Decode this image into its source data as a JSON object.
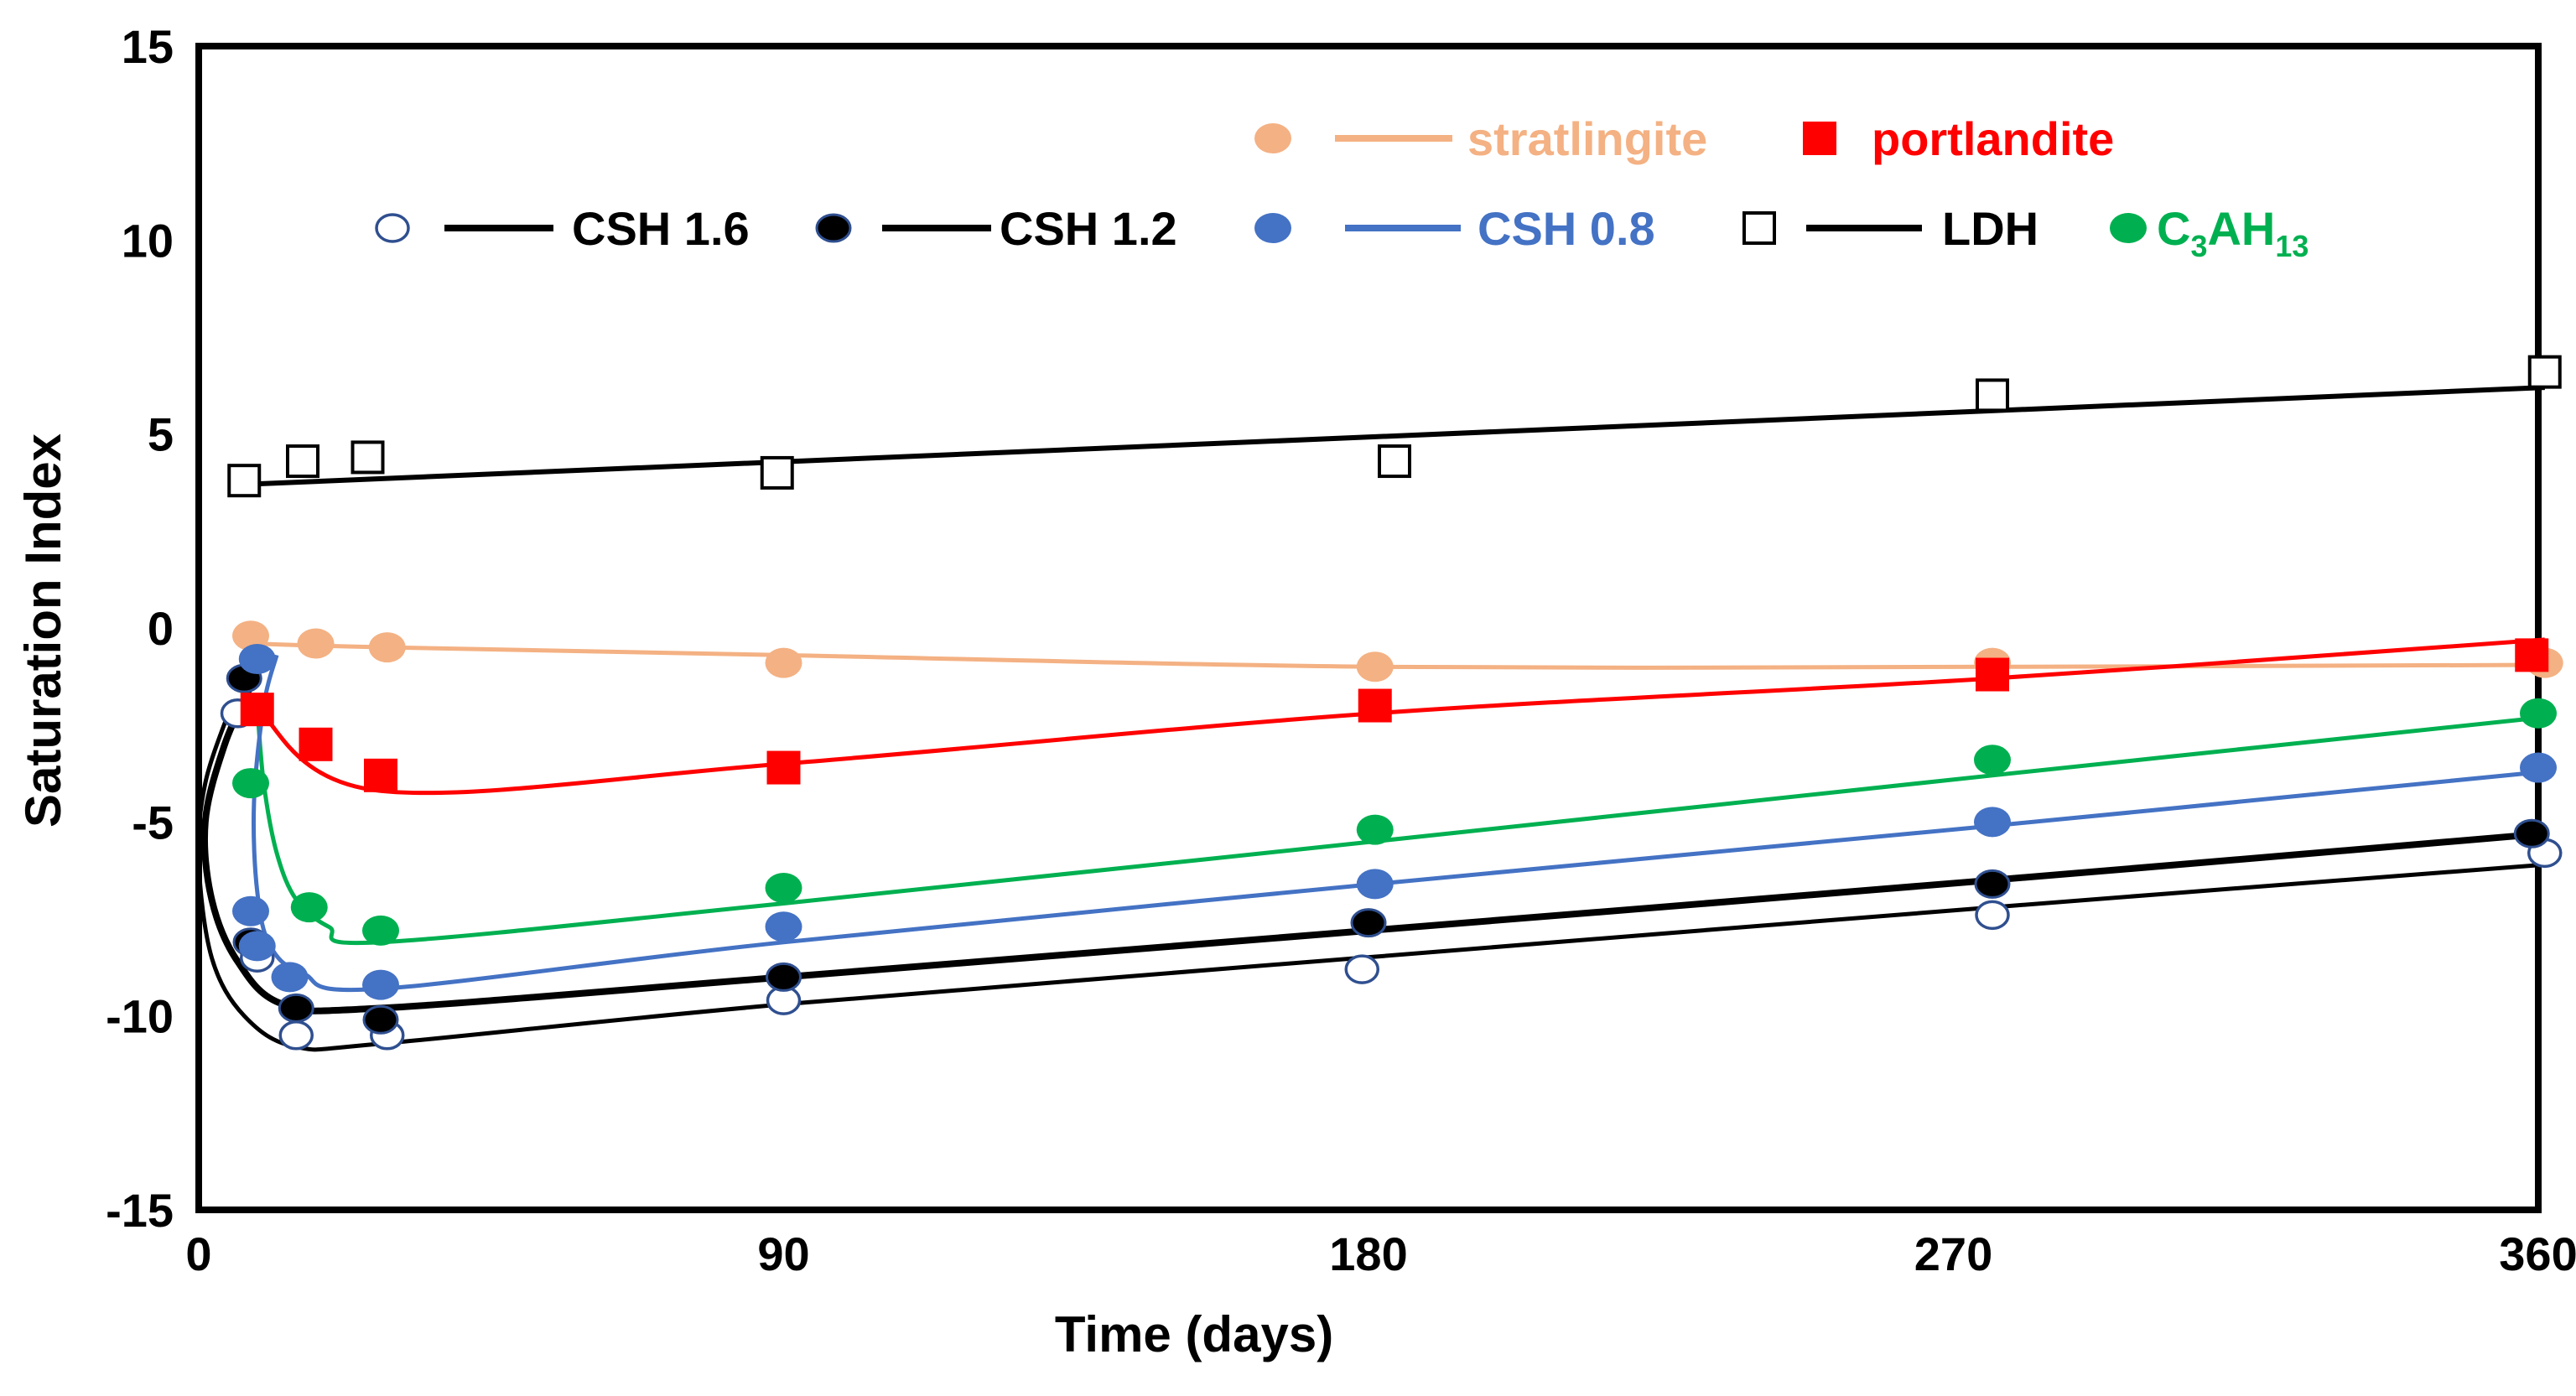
{
  "chart_data": {
    "type": "scatter",
    "title": "",
    "xlabel": "Time (days)",
    "ylabel": "Saturation Index",
    "xlim": [
      0,
      360
    ],
    "ylim": [
      -15,
      15
    ],
    "xticks": [
      0,
      90,
      180,
      270,
      360
    ],
    "yticks": [
      -15,
      -10,
      -5,
      0,
      5,
      10,
      15
    ],
    "grid": false,
    "legend_position": "top",
    "series": [
      {
        "name": "stratlingite",
        "marker": "filled-circle",
        "color": "#F4B183",
        "points": [
          [
            8,
            -0.2
          ],
          [
            18,
            -0.4
          ],
          [
            29,
            -0.5
          ],
          [
            90,
            -0.9
          ],
          [
            181,
            -1.0
          ],
          [
            276,
            -0.9
          ],
          [
            361,
            -0.9
          ]
        ],
        "fit": [
          [
            8,
            -0.4
          ],
          [
            29,
            -0.5
          ],
          [
            90,
            -0.7
          ],
          [
            181,
            -1.0
          ],
          [
            276,
            -1.0
          ],
          [
            361,
            -0.95
          ]
        ]
      },
      {
        "name": "portlandite",
        "marker": "filled-square",
        "color": "#FF0000",
        "points": [
          [
            9,
            -2.1
          ],
          [
            18,
            -3.0
          ],
          [
            28,
            -3.8
          ],
          [
            90,
            -3.6
          ],
          [
            181,
            -2.0
          ],
          [
            276,
            -1.2
          ],
          [
            359,
            -0.7
          ]
        ],
        "fit": [
          [
            9,
            -2.1
          ],
          [
            28,
            -4.2
          ],
          [
            90,
            -3.5
          ],
          [
            181,
            -2.2
          ],
          [
            276,
            -1.3
          ],
          [
            361,
            -0.3
          ]
        ]
      },
      {
        "name": "C3AH13",
        "label_parts": [
          "C",
          "3",
          "AH",
          "13"
        ],
        "marker": "filled-circle",
        "color": "#00B050",
        "points": [
          [
            8,
            -4.0
          ],
          [
            17,
            -7.2
          ],
          [
            28,
            -7.8
          ],
          [
            90,
            -6.7
          ],
          [
            181,
            -5.2
          ],
          [
            276,
            -3.4
          ],
          [
            360,
            -2.2
          ]
        ],
        "fit": [
          [
            9,
            -2.0
          ],
          [
            10,
            -4.0
          ],
          [
            12,
            -5.8
          ],
          [
            15,
            -7.0
          ],
          [
            20,
            -7.7
          ],
          [
            28,
            -8.1
          ],
          [
            90,
            -7.1
          ],
          [
            181,
            -5.5
          ],
          [
            276,
            -3.8
          ],
          [
            361,
            -2.3
          ]
        ]
      },
      {
        "name": "CSH 0.8",
        "marker": "filled-circle",
        "color": "#4472C4",
        "points": [
          [
            9,
            -0.8
          ],
          [
            8,
            -7.3
          ],
          [
            9,
            -8.2
          ],
          [
            14,
            -9.0
          ],
          [
            28,
            -9.2
          ],
          [
            90,
            -7.7
          ],
          [
            181,
            -6.6
          ],
          [
            276,
            -5.0
          ],
          [
            360,
            -3.6
          ]
        ],
        "fit": [
          [
            12,
            -0.7
          ],
          [
            10,
            -2.0
          ],
          [
            8.5,
            -4.5
          ],
          [
            9,
            -6.8
          ],
          [
            11,
            -8.2
          ],
          [
            16,
            -8.9
          ],
          [
            28,
            -9.3
          ],
          [
            90,
            -8.1
          ],
          [
            181,
            -6.6
          ],
          [
            276,
            -5.1
          ],
          [
            361,
            -3.7
          ]
        ]
      },
      {
        "name": "CSH 1.2",
        "marker": "filled-circle-black",
        "color": "#000000",
        "points": [
          [
            7,
            -1.3
          ],
          [
            8,
            -8.1
          ],
          [
            15,
            -9.8
          ],
          [
            28,
            -10.1
          ],
          [
            90,
            -9.0
          ],
          [
            180,
            -7.6
          ],
          [
            276,
            -6.6
          ],
          [
            359,
            -5.3
          ]
        ],
        "fit": [
          [
            8,
            -1.5
          ],
          [
            4,
            -3.0
          ],
          [
            1,
            -5.0
          ],
          [
            2,
            -7.0
          ],
          [
            6,
            -8.6
          ],
          [
            13,
            -9.7
          ],
          [
            28,
            -9.8
          ],
          [
            90,
            -9.0
          ],
          [
            180,
            -7.8
          ],
          [
            276,
            -6.5
          ],
          [
            361,
            -5.3
          ]
        ]
      },
      {
        "name": "CSH 1.6",
        "marker": "open-circle",
        "color": "#2F4F8F",
        "points": [
          [
            6,
            -2.2
          ],
          [
            9,
            -8.5
          ],
          [
            15,
            -10.5
          ],
          [
            29,
            -10.5
          ],
          [
            90,
            -9.6
          ],
          [
            179,
            -8.8
          ],
          [
            276,
            -7.4
          ],
          [
            361,
            -5.8
          ]
        ],
        "fit": [
          [
            5,
            -2.0
          ],
          [
            1,
            -4.0
          ],
          [
            0,
            -6.0
          ],
          [
            2,
            -8.5
          ],
          [
            7,
            -10.0
          ],
          [
            15,
            -10.8
          ],
          [
            29,
            -10.7
          ],
          [
            90,
            -9.7
          ],
          [
            179,
            -8.5
          ],
          [
            276,
            -7.2
          ],
          [
            361,
            -6.1
          ]
        ]
      },
      {
        "name": "LDH",
        "marker": "open-square",
        "color": "#000000",
        "points": [
          [
            7,
            3.8
          ],
          [
            16,
            4.3
          ],
          [
            26,
            4.4
          ],
          [
            89,
            4.0
          ],
          [
            184,
            4.3
          ],
          [
            276,
            6.0
          ],
          [
            361,
            6.6
          ]
        ],
        "fit": [
          [
            7,
            3.7
          ],
          [
            361,
            6.2
          ]
        ]
      }
    ]
  }
}
